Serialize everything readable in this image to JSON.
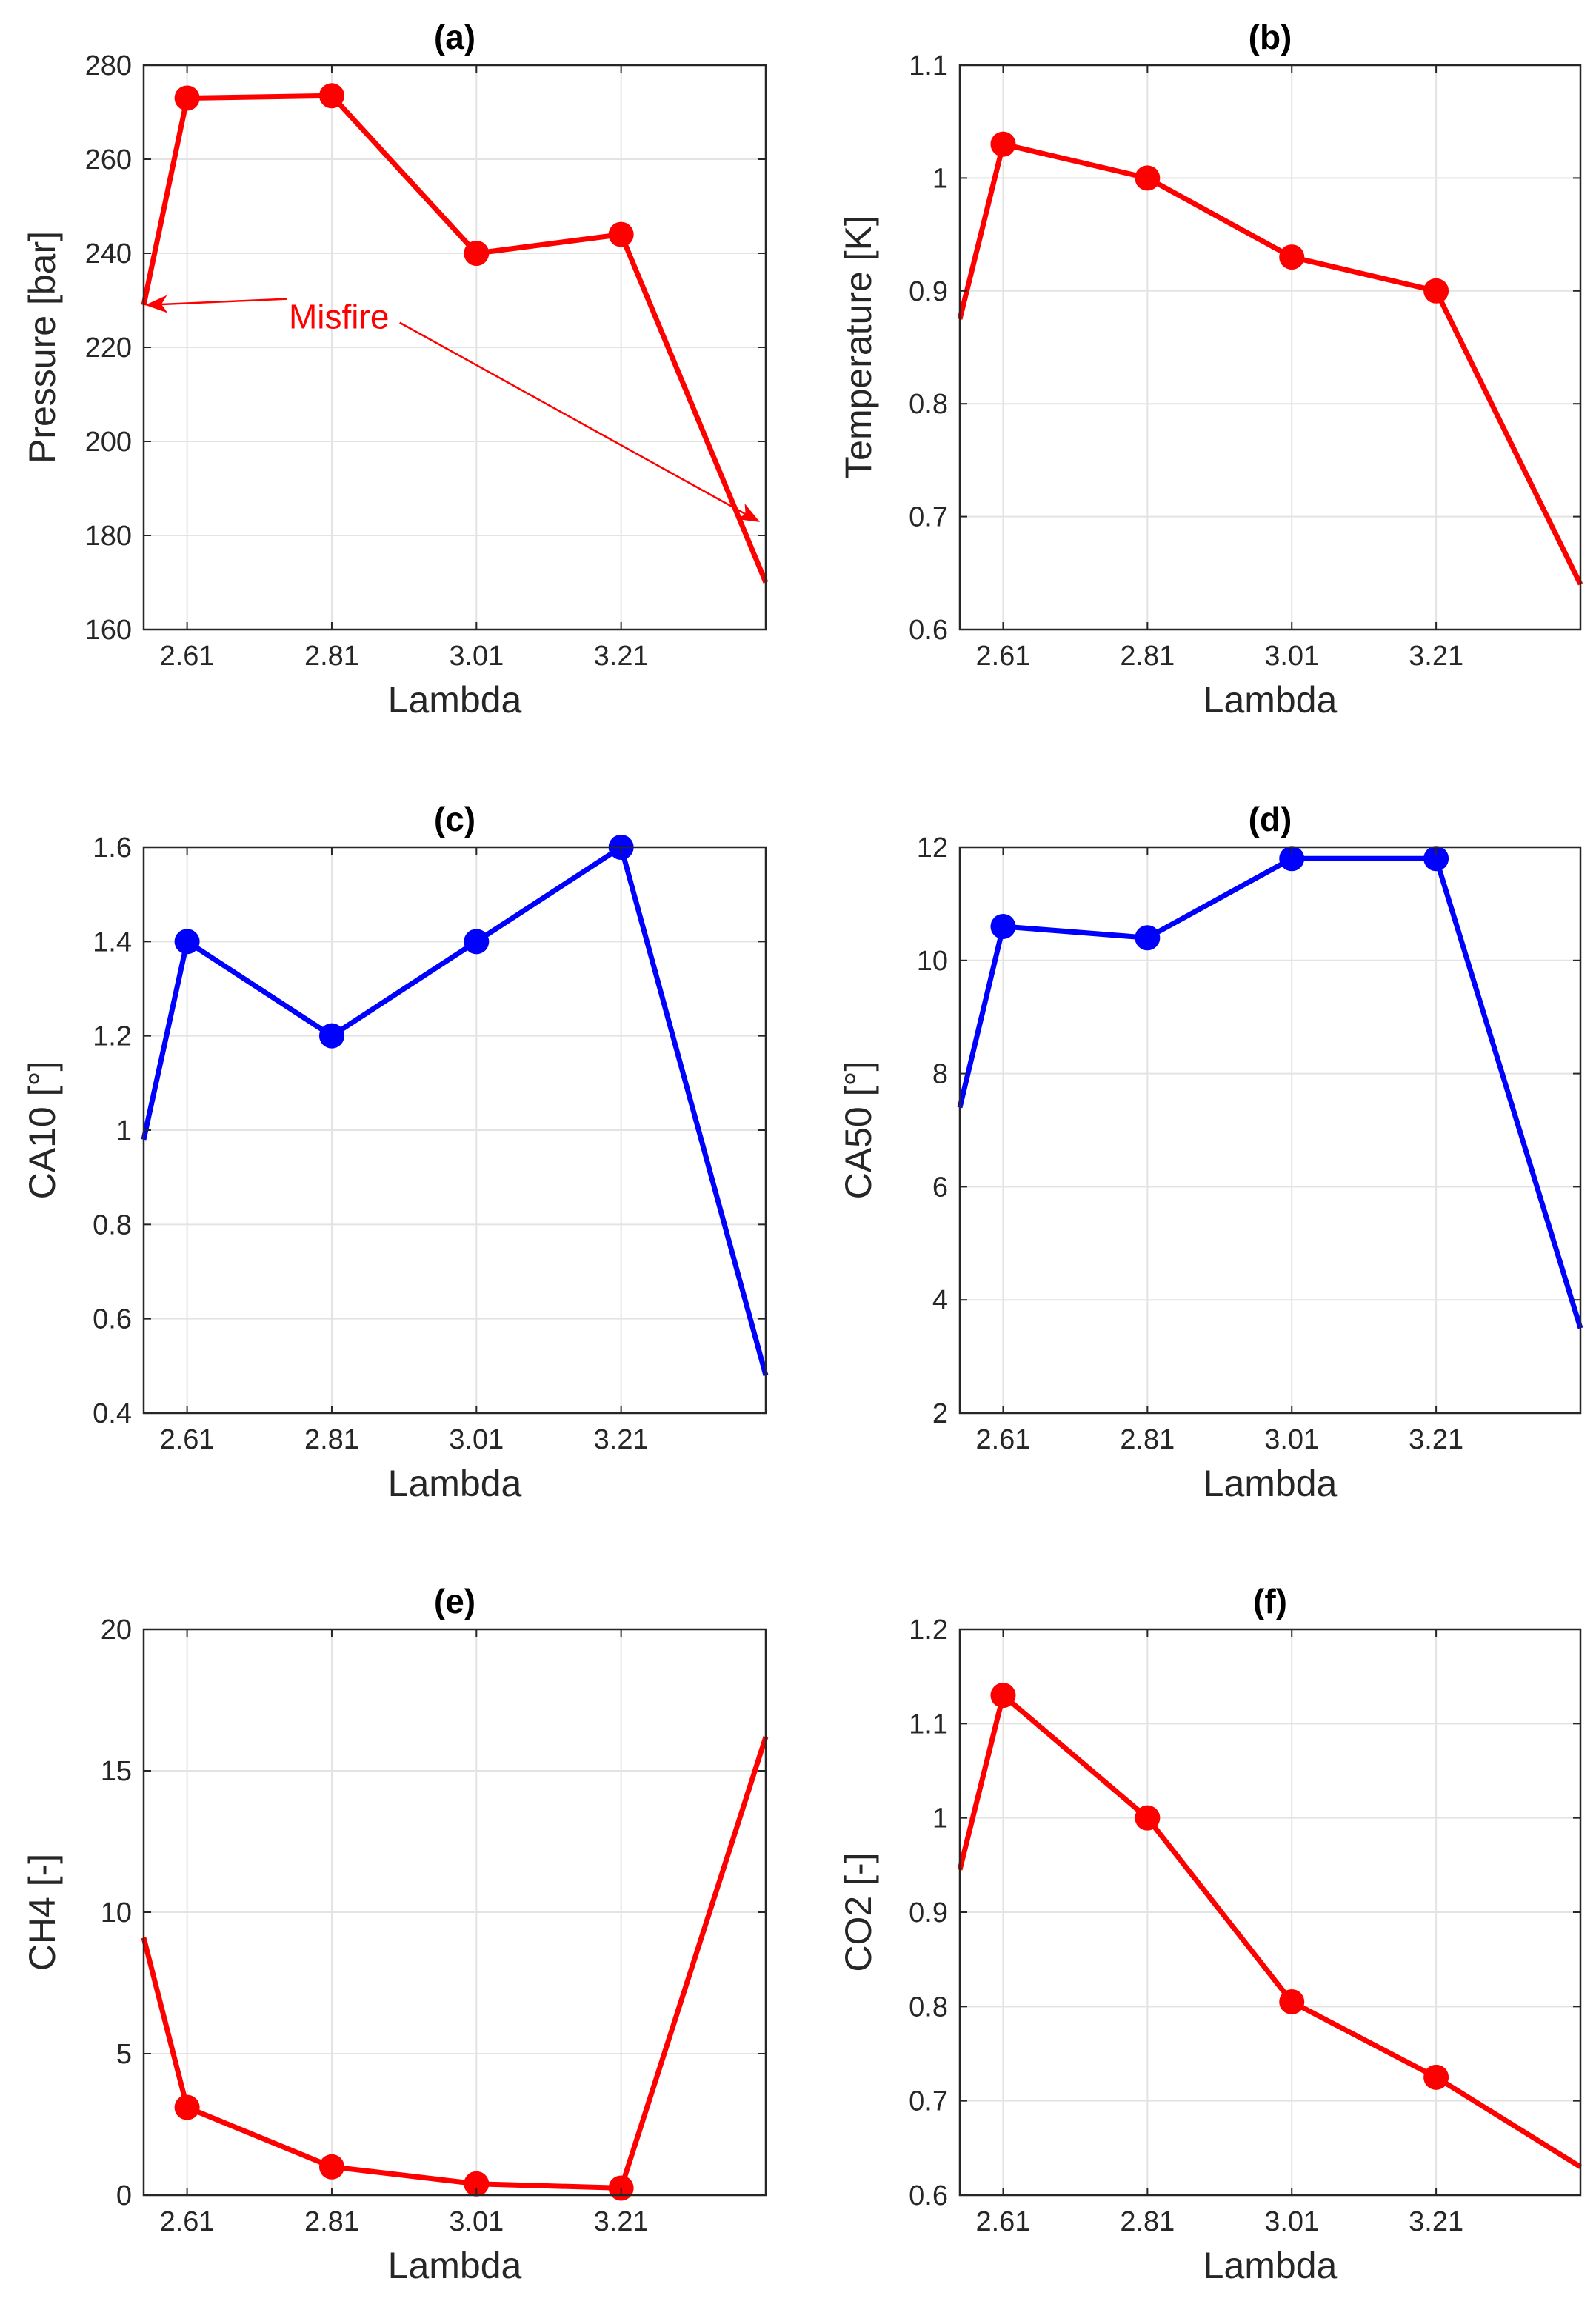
{
  "figure_title": "",
  "chart_data": [
    {
      "panel": "(a)",
      "type": "line",
      "title": "(a)",
      "xlabel": "Lambda",
      "ylabel": "Pressure [bar]",
      "xlim": [
        2.55,
        3.41
      ],
      "ylim": [
        160,
        280
      ],
      "xticks": [
        2.61,
        2.81,
        3.01,
        3.21
      ],
      "xtick_labels": [
        "2.61",
        "2.81",
        "3.01",
        "3.21"
      ],
      "yticks": [
        160,
        180,
        200,
        220,
        240,
        260,
        280
      ],
      "ytick_labels": [
        "160",
        "180",
        "200",
        "220",
        "240",
        "260",
        "280"
      ],
      "color": "#ff0000",
      "x": [
        2.55,
        2.61,
        2.81,
        3.01,
        3.21,
        3.41
      ],
      "y": [
        229,
        273,
        273.5,
        240,
        244,
        170
      ],
      "markers": [
        false,
        true,
        true,
        true,
        true,
        false
      ],
      "grid": true,
      "annotation": {
        "text": "Misfire",
        "color": "#ff0000",
        "at": [
          2.82,
          224
        ],
        "arrows_to": [
          [
            2.55,
            229
          ],
          [
            3.4,
            183
          ]
        ]
      }
    },
    {
      "panel": "(b)",
      "type": "line",
      "title": "(b)",
      "xlabel": "Lambda",
      "ylabel": "Temperature [K]",
      "xlim": [
        2.55,
        3.41
      ],
      "ylim": [
        0.6,
        1.1
      ],
      "xticks": [
        2.61,
        2.81,
        3.01,
        3.21
      ],
      "xtick_labels": [
        "2.61",
        "2.81",
        "3.01",
        "3.21"
      ],
      "yticks": [
        0.6,
        0.7,
        0.8,
        0.9,
        1.0,
        1.1
      ],
      "ytick_labels": [
        "0.6",
        "0.7",
        "0.8",
        "0.9",
        "1",
        "1.1"
      ],
      "color": "#ff0000",
      "x": [
        2.55,
        2.61,
        2.81,
        3.01,
        3.21,
        3.41
      ],
      "y": [
        0.875,
        1.03,
        1.0,
        0.93,
        0.9,
        0.64
      ],
      "markers": [
        false,
        true,
        true,
        true,
        true,
        false
      ],
      "grid": true
    },
    {
      "panel": "(c)",
      "type": "line",
      "title": "(c)",
      "xlabel": "Lambda",
      "ylabel": "CA10 [°]",
      "xlim": [
        2.55,
        3.41
      ],
      "ylim": [
        0.4,
        1.6
      ],
      "xticks": [
        2.61,
        2.81,
        3.01,
        3.21
      ],
      "xtick_labels": [
        "2.61",
        "2.81",
        "3.01",
        "3.21"
      ],
      "yticks": [
        0.4,
        0.6,
        0.8,
        1.0,
        1.2,
        1.4,
        1.6
      ],
      "ytick_labels": [
        "0.4",
        "0.6",
        "0.8",
        "1",
        "1.2",
        "1.4",
        "1.6"
      ],
      "color": "#0000ff",
      "x": [
        2.55,
        2.61,
        2.81,
        3.01,
        3.21,
        3.41
      ],
      "y": [
        0.98,
        1.4,
        1.2,
        1.4,
        1.6,
        0.48
      ],
      "markers": [
        false,
        true,
        true,
        true,
        true,
        false
      ],
      "grid": true
    },
    {
      "panel": "(d)",
      "type": "line",
      "title": "(d)",
      "xlabel": "Lambda",
      "ylabel": "CA50 [°]",
      "xlim": [
        2.55,
        3.41
      ],
      "ylim": [
        2,
        12
      ],
      "xticks": [
        2.61,
        2.81,
        3.01,
        3.21
      ],
      "xtick_labels": [
        "2.61",
        "2.81",
        "3.01",
        "3.21"
      ],
      "yticks": [
        2,
        4,
        6,
        8,
        10,
        12
      ],
      "ytick_labels": [
        "2",
        "4",
        "6",
        "8",
        "10",
        "12"
      ],
      "color": "#0000ff",
      "x": [
        2.55,
        2.61,
        2.81,
        3.01,
        3.21,
        3.41
      ],
      "y": [
        7.4,
        10.6,
        10.4,
        11.8,
        11.8,
        3.5
      ],
      "markers": [
        false,
        true,
        true,
        true,
        true,
        false
      ],
      "grid": true
    },
    {
      "panel": "(e)",
      "type": "line",
      "title": "(e)",
      "xlabel": "Lambda",
      "ylabel": "CH4 [-]",
      "xlim": [
        2.55,
        3.41
      ],
      "ylim": [
        0,
        20
      ],
      "xticks": [
        2.61,
        2.81,
        3.01,
        3.21
      ],
      "xtick_labels": [
        "2.61",
        "2.81",
        "3.01",
        "3.21"
      ],
      "yticks": [
        0,
        5,
        10,
        15,
        20
      ],
      "ytick_labels": [
        "0",
        "5",
        "10",
        "15",
        "20"
      ],
      "color": "#ff0000",
      "x": [
        2.55,
        2.61,
        2.81,
        3.01,
        3.21,
        3.41
      ],
      "y": [
        9.1,
        3.1,
        1.0,
        0.4,
        0.25,
        16.2
      ],
      "markers": [
        false,
        true,
        true,
        true,
        true,
        false
      ],
      "grid": true
    },
    {
      "panel": "(f)",
      "type": "line",
      "title": "(f)",
      "xlabel": "Lambda",
      "ylabel": "CO2 [-]",
      "xlim": [
        2.55,
        3.41
      ],
      "ylim": [
        0.6,
        1.2
      ],
      "xticks": [
        2.61,
        2.81,
        3.01,
        3.21
      ],
      "xtick_labels": [
        "2.61",
        "2.81",
        "3.01",
        "3.21"
      ],
      "yticks": [
        0.6,
        0.7,
        0.8,
        0.9,
        1.0,
        1.1,
        1.2
      ],
      "ytick_labels": [
        "0.6",
        "0.7",
        "0.8",
        "0.9",
        "1",
        "1.1",
        "1.2"
      ],
      "color": "#ff0000",
      "x": [
        2.55,
        2.61,
        2.81,
        3.01,
        3.21,
        3.41
      ],
      "y": [
        0.945,
        1.13,
        1.0,
        0.805,
        0.725,
        0.63
      ],
      "markers": [
        false,
        true,
        true,
        true,
        true,
        false
      ],
      "grid": true
    }
  ]
}
